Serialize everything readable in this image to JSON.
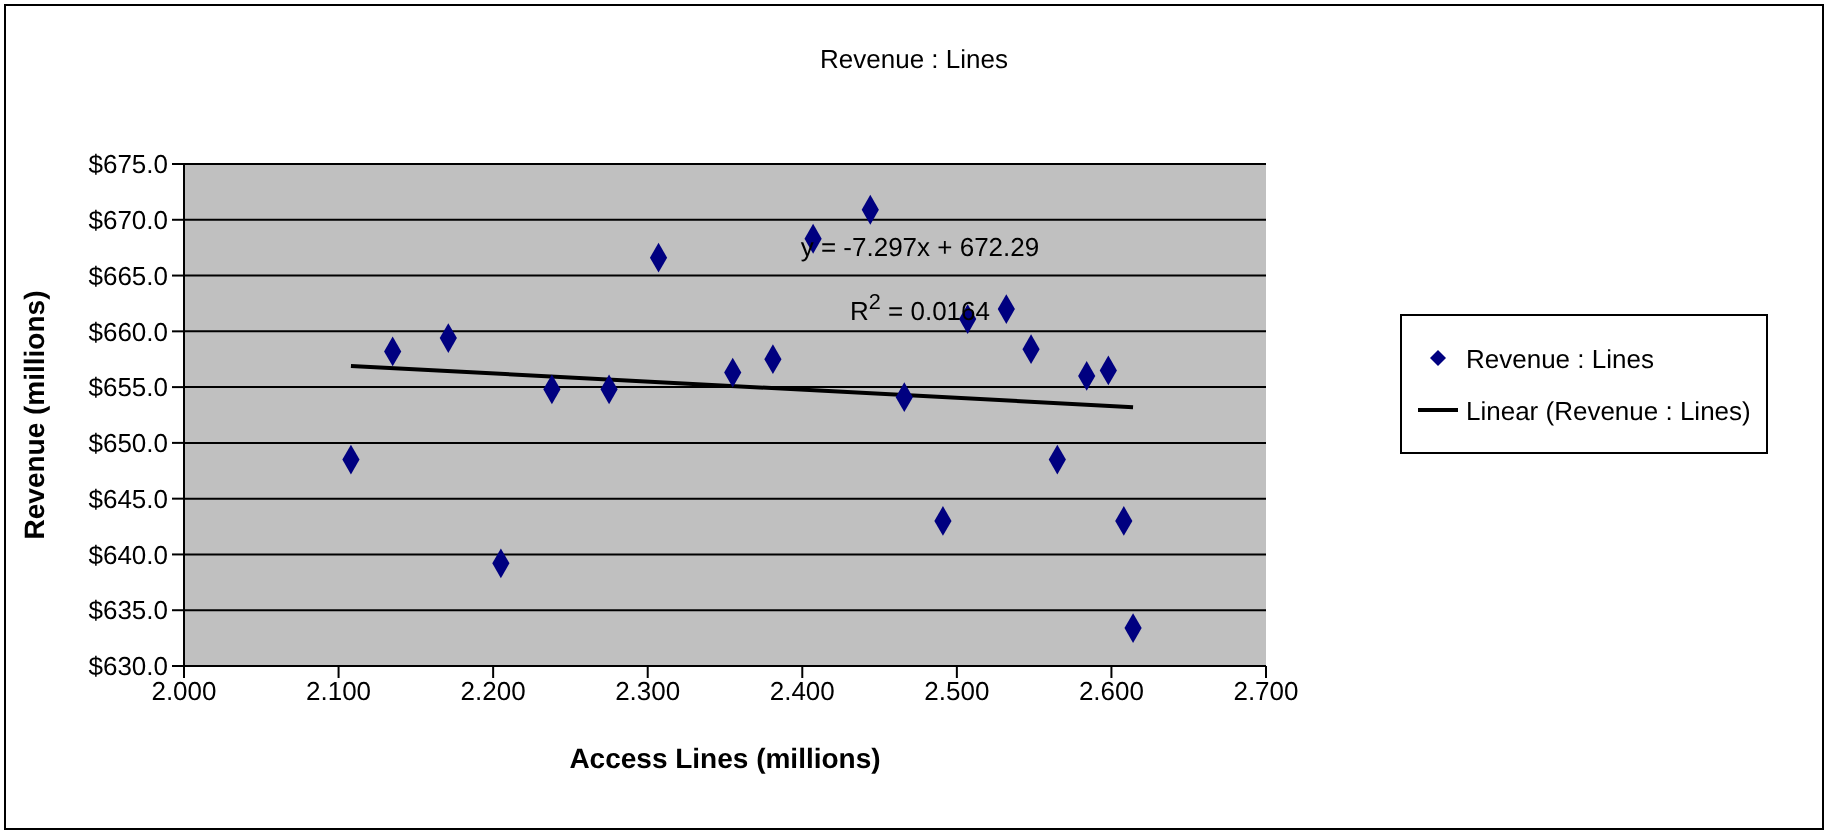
{
  "chart_data": {
    "type": "scatter",
    "title": "Revenue : Lines",
    "xlabel": "Access Lines (millions)",
    "ylabel": "Revenue (millions)",
    "series": [
      {
        "name": "Revenue : Lines",
        "color": "#000080",
        "marker": "diamond",
        "x": [
          2.108,
          2.135,
          2.171,
          2.205,
          2.238,
          2.275,
          2.307,
          2.355,
          2.381,
          2.407,
          2.444,
          2.466,
          2.491,
          2.507,
          2.532,
          2.548,
          2.565,
          2.584,
          2.598,
          2.608,
          2.614
        ],
        "values": [
          648.5,
          658.2,
          659.4,
          639.2,
          654.8,
          654.8,
          666.6,
          656.3,
          657.5,
          668.3,
          670.9,
          654.1,
          643.0,
          661.1,
          662.0,
          658.4,
          648.5,
          656.0,
          656.5,
          643.0,
          633.4
        ]
      },
      {
        "name": "Linear (Revenue : Lines)",
        "type": "line",
        "color": "#000000",
        "marker": "none",
        "line_style": "solid",
        "x": [
          2.108,
          2.614
        ],
        "values": [
          656.9,
          653.2
        ]
      }
    ],
    "xlim": [
      2.0,
      2.7
    ],
    "xticks": [
      {
        "value": 2.0,
        "label": "2.000"
      },
      {
        "value": 2.1,
        "label": "2.100"
      },
      {
        "value": 2.2,
        "label": "2.200"
      },
      {
        "value": 2.3,
        "label": "2.300"
      },
      {
        "value": 2.4,
        "label": "2.400"
      },
      {
        "value": 2.5,
        "label": "2.500"
      },
      {
        "value": 2.6,
        "label": "2.600"
      },
      {
        "value": 2.7,
        "label": "2.700"
      }
    ],
    "ylim": [
      630,
      675
    ],
    "yticks": [
      {
        "value": 630,
        "label": "$630.0"
      },
      {
        "value": 635,
        "label": "$635.0"
      },
      {
        "value": 640,
        "label": "$640.0"
      },
      {
        "value": 645,
        "label": "$645.0"
      },
      {
        "value": 650,
        "label": "$650.0"
      },
      {
        "value": 655,
        "label": "$655.0"
      },
      {
        "value": 660,
        "label": "$660.0"
      },
      {
        "value": 665,
        "label": "$665.0"
      },
      {
        "value": 670,
        "label": "$670.0"
      },
      {
        "value": 675,
        "label": "$675.0"
      }
    ],
    "grid": "y",
    "legend": "right",
    "annotations": [
      "y = -7.297x + 672.29",
      "R$^{2}$ = 0.0164"
    ]
  }
}
